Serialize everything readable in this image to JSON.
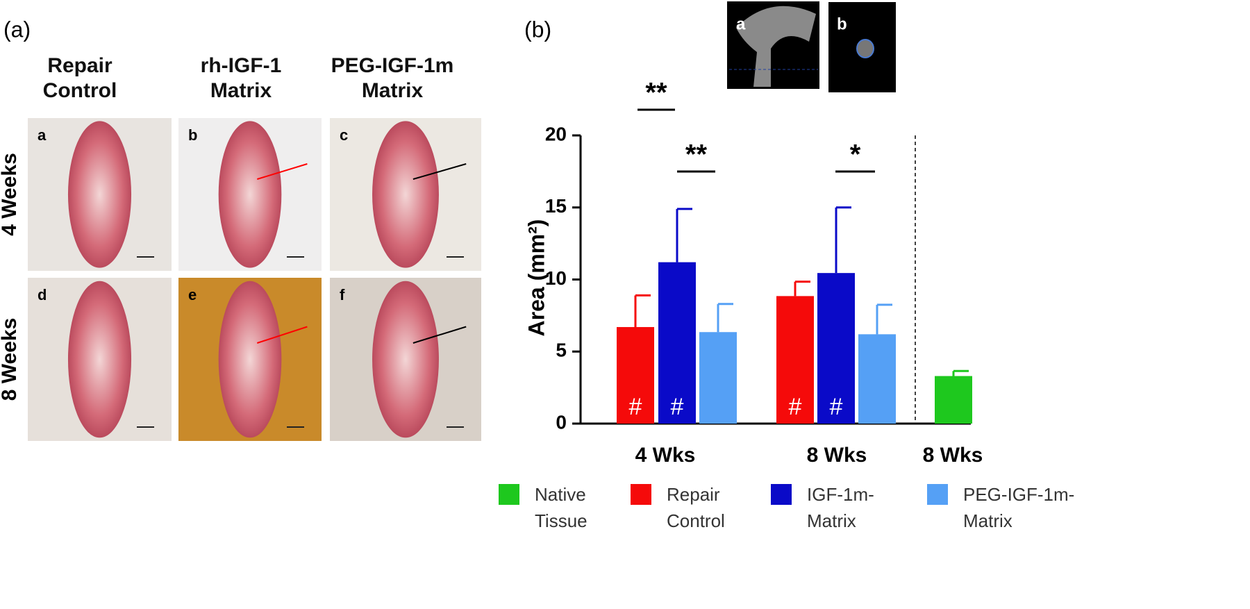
{
  "panel_a": {
    "label": "(a)",
    "columns": [
      "Repair Control",
      "rh-IGF-1 Matrix",
      "PEG-IGF-1m Matrix"
    ],
    "rows": [
      "4 Weeks",
      "8 Weeks"
    ],
    "photo_labels": [
      "a",
      "b",
      "c",
      "d",
      "e",
      "f"
    ]
  },
  "panel_b_label": "(b)",
  "inset_labels": [
    "a",
    "b"
  ],
  "chart_data": {
    "type": "bar",
    "y_label": "Area (mm²)",
    "categories": [
      "4 Wks",
      "8 Wks",
      "8 Wks"
    ],
    "series": [
      {
        "name": "Native Tissue",
        "color": "#1ec81e",
        "values": [
          null,
          null,
          3.3
        ],
        "errors": [
          null,
          null,
          0.35
        ],
        "markers": [
          null,
          null,
          null
        ]
      },
      {
        "name": "Repair Control",
        "color": "#f50a0a",
        "values": [
          6.7,
          8.85,
          null
        ],
        "errors": [
          2.2,
          1.0,
          null
        ],
        "markers": [
          "#",
          "#",
          null
        ]
      },
      {
        "name": "IGF-1m-Matrix",
        "color": "#0a0ac8",
        "values": [
          11.2,
          10.45,
          null
        ],
        "errors": [
          3.7,
          4.55,
          null
        ],
        "markers": [
          "#",
          "#",
          null
        ]
      },
      {
        "name": "PEG-IGF-1m-Matrix",
        "color": "#55a0f5",
        "values": [
          6.35,
          6.2,
          null
        ],
        "errors": [
          1.95,
          2.05,
          null
        ],
        "markers": [
          null,
          null,
          null
        ]
      }
    ],
    "significance": [
      "**",
      "**",
      "*"
    ],
    "ylim": [
      0,
      20
    ],
    "yticks": [
      0,
      5,
      10,
      15,
      20
    ]
  }
}
